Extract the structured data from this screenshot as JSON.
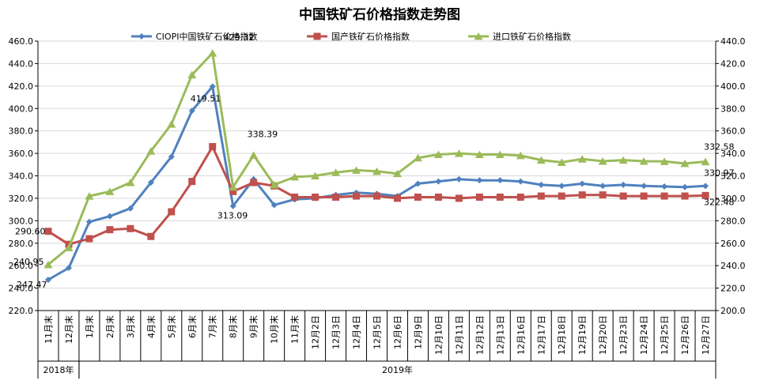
{
  "chart_data": {
    "type": "line",
    "title": "中国铁矿石价格指数走势图",
    "categories": [
      "11月末",
      "12月末",
      "1月末",
      "2月末",
      "3月末",
      "4月末",
      "5月末",
      "6月末",
      "7月末",
      "8月末",
      "9月末",
      "10月末",
      "11月末",
      "12月2日",
      "12月3日",
      "12月4日",
      "12月5日",
      "12月6日",
      "12月9日",
      "12月10日",
      "12月11日",
      "12月12日",
      "12月13日",
      "12月16日",
      "12月17日",
      "12月18日",
      "12月19日",
      "12月20日",
      "12月23日",
      "12月24日",
      "12月25日",
      "12月26日",
      "12月27日"
    ],
    "year_groups": [
      {
        "label": "2018年",
        "start": 0,
        "end": 1
      },
      {
        "label": "2019年",
        "start": 2,
        "end": 32
      }
    ],
    "left_axis": {
      "min": 220,
      "max": 460,
      "step": 20,
      "decimals": 1
    },
    "right_axis": {
      "min": 200,
      "max": 440,
      "step": 20,
      "decimals": 1
    },
    "series": [
      {
        "name": "CIOPI中国铁矿石价格指数",
        "color": "#4f81bd",
        "marker": "diamond",
        "axis": "left",
        "values": [
          247.47,
          258,
          299,
          304,
          311,
          334,
          357,
          398,
          419.51,
          313.09,
          337,
          314,
          319,
          320,
          323,
          325,
          324,
          322,
          333,
          335,
          337,
          336,
          336,
          335,
          332,
          331,
          333,
          331,
          332,
          331,
          330.5,
          330,
          330.97
        ]
      },
      {
        "name": "国产铁矿石价格指数",
        "color": "#c0504d",
        "marker": "square",
        "axis": "left",
        "values": [
          290.6,
          279,
          284,
          292,
          293,
          286,
          308,
          335,
          366,
          326,
          334,
          331,
          321,
          321,
          321,
          322,
          322,
          320,
          321,
          321,
          320,
          321,
          321,
          321,
          322,
          322,
          323,
          323,
          322,
          322,
          322,
          322,
          322.48
        ]
      },
      {
        "name": "进口铁矿石价格指数",
        "color": "#9bbb59",
        "marker": "triangle",
        "axis": "right",
        "values": [
          240.95,
          256,
          302,
          306,
          314,
          342,
          366,
          410,
          429.32,
          310,
          338.39,
          312,
          319,
          320,
          323,
          325,
          324,
          322,
          336,
          339,
          340,
          339,
          339,
          338,
          334,
          332,
          335,
          333,
          334,
          333,
          332.8,
          331,
          332.58
        ]
      }
    ],
    "annotations": [
      {
        "text": "290.60",
        "series": 1,
        "index": 0
      },
      {
        "text": "240.95",
        "series": 2,
        "index": 0
      },
      {
        "text": "247.47",
        "series": 0,
        "index": 0
      },
      {
        "text": "429.32",
        "series": 2,
        "index": 8
      },
      {
        "text": "419.51",
        "series": 0,
        "index": 8
      },
      {
        "text": "313.09",
        "series": 0,
        "index": 9
      },
      {
        "text": "338.39",
        "series": 2,
        "index": 10
      },
      {
        "text": "332.58",
        "series": 2,
        "index": 32
      },
      {
        "text": "330.97",
        "series": 0,
        "index": 32
      },
      {
        "text": "322.48",
        "series": 1,
        "index": 32
      }
    ],
    "grid": true,
    "legend": "top"
  }
}
